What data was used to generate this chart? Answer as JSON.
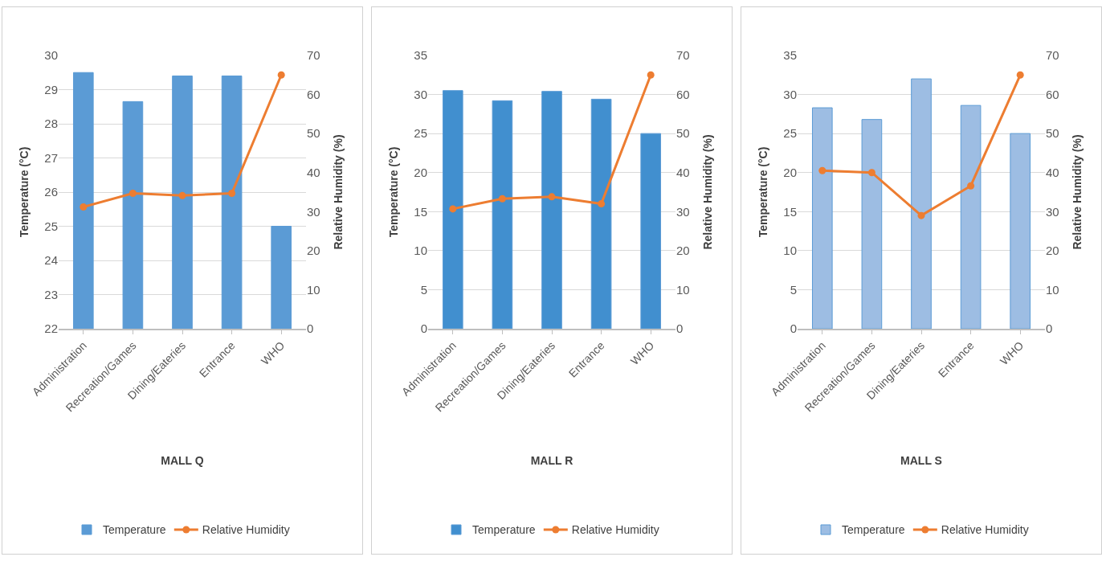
{
  "chart_data": [
    {
      "type": "bar",
      "title": "MALL Q",
      "ylabel": "Temperature (°C)",
      "y2label": "Relative Humidity (%)",
      "categories": [
        "Administration",
        "Recreation/Games",
        "Dining/Eateries",
        "Entrance",
        "WHO"
      ],
      "series": [
        {
          "name": "Temperature",
          "color": "#5b9bd5",
          "values": [
            29.5,
            28.65,
            29.4,
            29.4,
            25.0
          ]
        },
        {
          "name": "Relative Humidity",
          "type": "line",
          "axis": "y2",
          "color": "#ed7d31",
          "values": [
            31.2,
            34.7,
            34.1,
            34.7,
            65
          ]
        }
      ],
      "ylim": [
        22,
        30
      ],
      "yticks": [
        22,
        23,
        24,
        25,
        26,
        27,
        28,
        29,
        30
      ],
      "y2lim": [
        0,
        70
      ],
      "y2ticks": [
        0,
        10,
        20,
        30,
        40,
        50,
        60,
        70
      ],
      "grid": "y",
      "legend": "bottom",
      "marker": "circle"
    },
    {
      "type": "bar",
      "title": "MALL R",
      "ylabel": "Temperature (°C)",
      "y2label": "Relative Humidity (%)",
      "categories": [
        "Administration",
        "Recreation/Games",
        "Dining/Eateries",
        "Entrance",
        "WHO"
      ],
      "series": [
        {
          "name": "Temperature",
          "color": "#418fcf",
          "values": [
            30.5,
            29.2,
            30.4,
            29.4,
            25.0
          ]
        },
        {
          "name": "Relative Humidity",
          "type": "line",
          "axis": "y2",
          "color": "#ed7d31",
          "values": [
            30.7,
            33.3,
            33.8,
            32.0,
            65
          ]
        }
      ],
      "ylim": [
        0,
        35
      ],
      "yticks": [
        0,
        5,
        10,
        15,
        20,
        25,
        30,
        35
      ],
      "y2lim": [
        0,
        70
      ],
      "y2ticks": [
        0,
        10,
        20,
        30,
        40,
        50,
        60,
        70
      ],
      "grid": "y",
      "legend": "bottom",
      "marker": "circle"
    },
    {
      "type": "bar",
      "title": "MALL S",
      "ylabel": "Temperature (°C)",
      "y2label": "Relative Humidity (%)",
      "categories": [
        "Administration",
        "Recreation/Games",
        "Dining/Eateries",
        "Entrance",
        "WHO"
      ],
      "series": [
        {
          "name": "Temperature",
          "color": "#9dbde3",
          "values": [
            28.3,
            26.8,
            32.0,
            28.6,
            25.0
          ]
        },
        {
          "name": "Relative Humidity",
          "type": "line",
          "axis": "y2",
          "color": "#ed7d31",
          "values": [
            40.5,
            40.0,
            29.0,
            36.6,
            65
          ]
        }
      ],
      "ylim": [
        0,
        35
      ],
      "yticks": [
        0,
        5,
        10,
        15,
        20,
        25,
        30,
        35
      ],
      "y2lim": [
        0,
        70
      ],
      "y2ticks": [
        0,
        10,
        20,
        30,
        40,
        50,
        60,
        70
      ],
      "grid": "y",
      "legend": "bottom",
      "marker": "circle"
    }
  ]
}
